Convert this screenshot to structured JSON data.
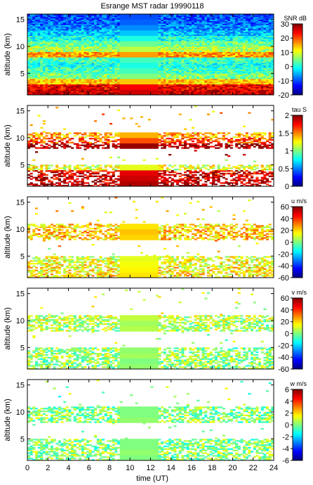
{
  "chart_data": {
    "type": "heatmap",
    "title": "Esrange MST radar 19990118",
    "xlabel": "time (UT)",
    "xlim": [
      0,
      24
    ],
    "xticks": [
      "0",
      "2",
      "4",
      "6",
      "8",
      "10",
      "12",
      "14",
      "16",
      "18",
      "20",
      "22",
      "24"
    ],
    "gap_uniform_interval": [
      9,
      12.7
    ],
    "panels": [
      {
        "name": "snr",
        "ylabel": "altitude (km)",
        "ylim": [
          1,
          16
        ],
        "yticks": [
          "5",
          "10",
          "15"
        ],
        "colorbar_label": "SNR dB",
        "colorbar_range": [
          -20,
          30
        ],
        "colorbar_ticks": [
          "30",
          "20",
          "10",
          "0",
          "-10",
          "-20"
        ],
        "profile": [
          {
            "alt": 1.5,
            "value": 26
          },
          {
            "alt": 2.5,
            "value": 24
          },
          {
            "alt": 3.5,
            "value": 14
          },
          {
            "alt": 4.5,
            "value": 5
          },
          {
            "alt": 5.5,
            "value": 2
          },
          {
            "alt": 6.5,
            "value": 0
          },
          {
            "alt": 7.5,
            "value": 2
          },
          {
            "alt": 8.5,
            "value": 16
          },
          {
            "alt": 9.5,
            "value": 8
          },
          {
            "alt": 10.5,
            "value": 4
          },
          {
            "alt": 11.5,
            "value": 0
          },
          {
            "alt": 12.5,
            "value": -4
          },
          {
            "alt": 13.5,
            "value": -7
          },
          {
            "alt": 14.5,
            "value": -9
          },
          {
            "alt": 15.5,
            "value": -10
          }
        ]
      },
      {
        "name": "tau",
        "ylabel": "altitude (km)",
        "ylim": [
          1,
          16
        ],
        "yticks": [
          "5",
          "10",
          "15"
        ],
        "colorbar_label": "tau S",
        "colorbar_range": [
          0,
          2
        ],
        "colorbar_ticks": [
          "2",
          "1.5",
          "1",
          "0.5",
          "0"
        ],
        "profile": [
          {
            "alt": 1.5,
            "value": 1.9
          },
          {
            "alt": 2.5,
            "value": 1.85
          },
          {
            "alt": 3.5,
            "value": 1.8
          },
          {
            "alt": 4.5,
            "value": 1.2
          },
          {
            "alt": 8.5,
            "value": 1.95
          },
          {
            "alt": 9.5,
            "value": 1.6
          },
          {
            "alt": 10.5,
            "value": 1.4
          }
        ]
      },
      {
        "name": "u",
        "ylabel": "altitude (km)",
        "ylim": [
          1,
          16
        ],
        "yticks": [
          "5",
          "10",
          "15"
        ],
        "colorbar_label": "u m/s",
        "colorbar_range": [
          -60,
          60
        ],
        "colorbar_ticks": [
          "60",
          "40",
          "20",
          "0",
          "-20",
          "-40",
          "-60"
        ],
        "profile": [
          {
            "alt": 1.5,
            "value": 18
          },
          {
            "alt": 2.5,
            "value": 16
          },
          {
            "alt": 3.5,
            "value": 14
          },
          {
            "alt": 4.5,
            "value": 12
          },
          {
            "alt": 8.5,
            "value": 20
          },
          {
            "alt": 9.5,
            "value": 22
          },
          {
            "alt": 10.5,
            "value": 18
          }
        ]
      },
      {
        "name": "v",
        "ylabel": "altitude (km)",
        "ylim": [
          1,
          16
        ],
        "yticks": [
          "5",
          "10",
          "15"
        ],
        "colorbar_label": "v m/s",
        "colorbar_range": [
          -60,
          60
        ],
        "colorbar_ticks": [
          "60",
          "40",
          "20",
          "0",
          "-20",
          "-40",
          "-60"
        ],
        "profile": [
          {
            "alt": 1.5,
            "value": 2
          },
          {
            "alt": 2.5,
            "value": 0
          },
          {
            "alt": 3.5,
            "value": 4
          },
          {
            "alt": 4.5,
            "value": 2
          },
          {
            "alt": 8.5,
            "value": 6
          },
          {
            "alt": 9.5,
            "value": 4
          },
          {
            "alt": 10.5,
            "value": 8
          }
        ]
      },
      {
        "name": "w",
        "ylabel": "altitude (km)",
        "ylim": [
          1,
          16
        ],
        "yticks": [
          "5",
          "10",
          "15"
        ],
        "colorbar_label": "w m/s",
        "colorbar_range": [
          -6,
          6
        ],
        "colorbar_ticks": [
          "6",
          "4",
          "2",
          "0",
          "-2",
          "-4",
          "-6"
        ],
        "profile": [
          {
            "alt": 1.5,
            "value": 0
          },
          {
            "alt": 2.5,
            "value": 0.2
          },
          {
            "alt": 3.5,
            "value": 0
          },
          {
            "alt": 4.5,
            "value": 0
          },
          {
            "alt": 8.5,
            "value": 0.2
          },
          {
            "alt": 9.5,
            "value": 0
          },
          {
            "alt": 10.5,
            "value": 0
          }
        ]
      }
    ]
  }
}
